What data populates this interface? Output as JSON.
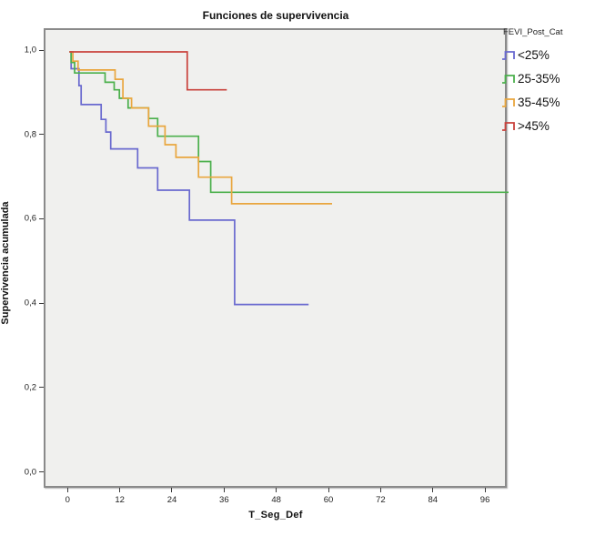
{
  "title": "Funciones de supervivencia",
  "legend": {
    "title": "FEVI_Post_Cat",
    "items": [
      {
        "label": "<25%",
        "color": "#6969cf"
      },
      {
        "label": "25-35%",
        "color": "#4bb04c"
      },
      {
        "label": "35-45%",
        "color": "#e9a63e"
      },
      {
        "label": ">45%",
        "color": "#c9423c"
      }
    ]
  },
  "chart_data": {
    "type": "line",
    "subtype": "kaplan-meier-step-survival",
    "title": "Funciones de supervivencia",
    "xlabel": "T_Seg_Def",
    "ylabel": "Supervivencia acumulada",
    "xlim": [
      -5.5,
      101
    ],
    "ylim": [
      0.0,
      1.0
    ],
    "grid": false,
    "plot_background": "#f0f0ee",
    "legend_position": "top-right",
    "legend_title": "FEVI_Post_Cat",
    "x_ticks": [
      0,
      12,
      24,
      36,
      48,
      60,
      72,
      84,
      96
    ],
    "y_ticks": [
      {
        "value": 1.0,
        "label": "1,0"
      },
      {
        "value": 0.8,
        "label": "0,8"
      },
      {
        "value": 0.6,
        "label": "0,6"
      },
      {
        "value": 0.4,
        "label": "0,4"
      },
      {
        "value": 0.2,
        "label": "0,2"
      },
      {
        "value": 0.0,
        "label": "0,0"
      }
    ],
    "series": [
      {
        "name": "<25%",
        "color": "#6969cf",
        "points": [
          [
            0,
            1.0
          ],
          [
            0.4,
            0.96
          ],
          [
            2.2,
            0.92
          ],
          [
            2.7,
            0.875
          ],
          [
            7.3,
            0.84
          ],
          [
            8.4,
            0.81
          ],
          [
            9.5,
            0.77
          ],
          [
            15.7,
            0.725
          ],
          [
            20.3,
            0.672
          ],
          [
            27.6,
            0.601
          ],
          [
            38,
            0.401
          ],
          [
            55,
            0.401
          ]
        ]
      },
      {
        "name": "25-35%",
        "color": "#4bb04c",
        "points": [
          [
            0,
            1.0
          ],
          [
            0.4,
            0.975
          ],
          [
            1.2,
            0.95
          ],
          [
            8.2,
            0.928
          ],
          [
            10.3,
            0.91
          ],
          [
            11.5,
            0.89
          ],
          [
            13.5,
            0.867
          ],
          [
            18.2,
            0.842
          ],
          [
            20.3,
            0.8
          ],
          [
            29.7,
            0.74
          ],
          [
            32.5,
            0.667
          ],
          [
            101,
            0.667
          ]
        ]
      },
      {
        "name": "35-45%",
        "color": "#e9a63e",
        "points": [
          [
            0,
            1.0
          ],
          [
            0.8,
            0.978
          ],
          [
            2,
            0.957
          ],
          [
            10.5,
            0.935
          ],
          [
            12.3,
            0.89
          ],
          [
            14.3,
            0.867
          ],
          [
            18.2,
            0.824
          ],
          [
            22,
            0.78
          ],
          [
            24.5,
            0.75
          ],
          [
            29.7,
            0.703
          ],
          [
            37.3,
            0.64
          ],
          [
            60.4,
            0.64
          ]
        ]
      },
      {
        "name": ">45%",
        "color": "#c9423c",
        "points": [
          [
            0,
            1.0
          ],
          [
            27.1,
            0.91
          ],
          [
            36.2,
            0.91
          ]
        ]
      }
    ]
  }
}
